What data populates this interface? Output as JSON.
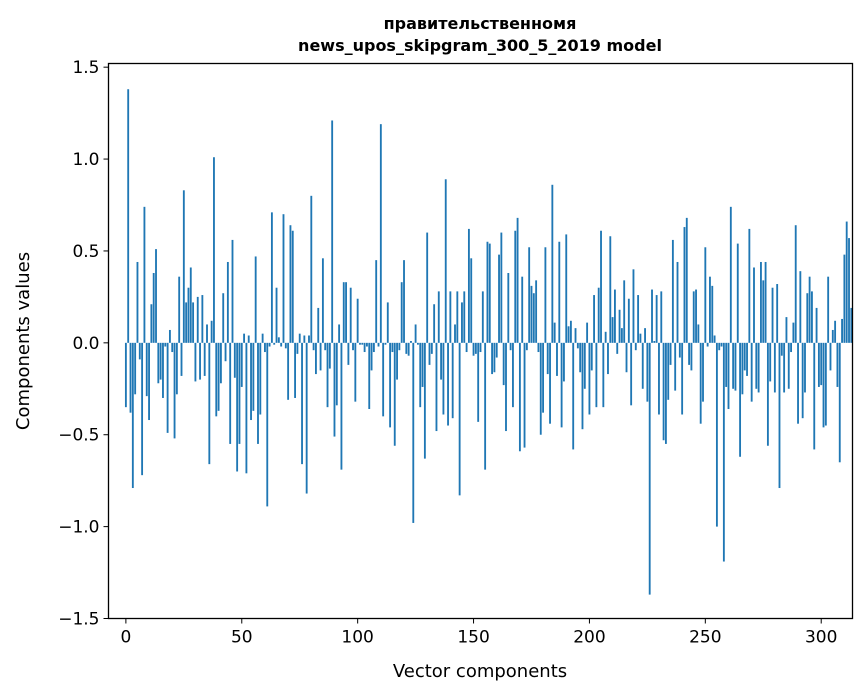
{
  "chart_data": {
    "type": "bar",
    "title_lines": [
      "правительственномя",
      "news_upos_skipgram_300_5_2019 model"
    ],
    "xlabel": "Vector components",
    "ylabel": "Components values",
    "xlim": [
      -7.5,
      313.5
    ],
    "ylim": [
      -1.5,
      1.52
    ],
    "xticks": [
      0,
      50,
      100,
      150,
      200,
      250,
      300
    ],
    "xtick_labels": [
      "0",
      "50",
      "100",
      "150",
      "200",
      "250",
      "300"
    ],
    "yticks": [
      -1.5,
      -1.0,
      -0.5,
      0.0,
      0.5,
      1.0,
      1.5
    ],
    "ytick_labels": [
      "−1.5",
      "−1.0",
      "−0.5",
      "0.0",
      "0.5",
      "1.0",
      "1.5"
    ],
    "grid": false,
    "bar_color": "#1f77b4",
    "bar_width": 0.8,
    "values": [
      -0.35,
      1.38,
      -0.38,
      -0.79,
      -0.28,
      0.44,
      -0.09,
      -0.72,
      0.74,
      -0.29,
      -0.42,
      0.21,
      0.38,
      0.51,
      -0.22,
      -0.2,
      -0.3,
      -0.02,
      -0.49,
      0.07,
      -0.05,
      -0.52,
      -0.28,
      0.36,
      -0.18,
      0.83,
      0.22,
      0.3,
      0.41,
      0.22,
      -0.21,
      0.25,
      -0.2,
      0.26,
      -0.18,
      0.1,
      -0.66,
      0.12,
      1.01,
      -0.4,
      -0.37,
      -0.22,
      0.27,
      -0.1,
      0.44,
      -0.55,
      0.56,
      -0.19,
      -0.7,
      -0.55,
      -0.24,
      0.05,
      -0.71,
      0.04,
      -0.42,
      -0.37,
      0.47,
      -0.55,
      -0.39,
      0.05,
      -0.05,
      -0.89,
      -0.02,
      0.71,
      -0.01,
      0.3,
      0.03,
      -0.02,
      0.7,
      -0.03,
      -0.31,
      0.64,
      0.61,
      -0.3,
      -0.06,
      0.05,
      -0.66,
      0.04,
      -0.82,
      0.04,
      0.8,
      -0.04,
      -0.17,
      0.19,
      -0.15,
      0.46,
      -0.04,
      -0.35,
      -0.14,
      1.21,
      -0.51,
      -0.34,
      0.1,
      -0.69,
      0.33,
      0.33,
      -0.12,
      0.3,
      -0.04,
      -0.32,
      0.24,
      -0.01,
      -0.01,
      -0.05,
      -0.02,
      -0.36,
      -0.15,
      -0.05,
      0.45,
      -0.02,
      1.19,
      -0.4,
      -0.01,
      0.22,
      -0.46,
      -0.05,
      -0.56,
      -0.2,
      -0.04,
      0.33,
      0.45,
      -0.06,
      -0.07,
      0.01,
      -0.98,
      0.1,
      -0.01,
      -0.35,
      -0.24,
      -0.63,
      0.6,
      -0.12,
      -0.06,
      0.21,
      -0.48,
      0.28,
      -0.2,
      -0.39,
      0.89,
      -0.45,
      0.28,
      -0.41,
      0.1,
      0.28,
      -0.83,
      0.22,
      0.28,
      -0.05,
      0.62,
      0.46,
      -0.07,
      -0.06,
      -0.43,
      -0.05,
      0.28,
      -0.69,
      0.55,
      0.54,
      -0.17,
      -0.16,
      -0.08,
      0.48,
      0.6,
      -0.23,
      -0.48,
      0.38,
      -0.04,
      -0.35,
      0.61,
      0.68,
      -0.59,
      0.36,
      -0.57,
      -0.04,
      0.52,
      0.31,
      0.27,
      0.34,
      -0.05,
      -0.5,
      -0.38,
      0.52,
      -0.17,
      -0.44,
      0.86,
      0.11,
      -0.18,
      0.55,
      -0.46,
      -0.21,
      0.59,
      0.09,
      0.12,
      -0.58,
      0.08,
      -0.03,
      -0.16,
      -0.47,
      -0.25,
      0.11,
      -0.39,
      -0.15,
      0.26,
      -0.35,
      0.3,
      0.61,
      -0.35,
      0.06,
      -0.17,
      0.58,
      0.14,
      0.29,
      -0.06,
      0.18,
      0.08,
      0.34,
      -0.16,
      0.24,
      -0.34,
      0.4,
      -0.04,
      0.26,
      0.05,
      -0.25,
      0.08,
      -0.32,
      -1.37,
      0.29,
      0.01,
      0.26,
      -0.39,
      0.28,
      -0.53,
      -0.55,
      -0.31,
      -0.12,
      0.56,
      -0.26,
      0.44,
      -0.08,
      -0.39,
      0.63,
      0.68,
      -0.12,
      -0.15,
      0.28,
      0.29,
      0.1,
      -0.44,
      -0.32,
      0.52,
      -0.02,
      0.36,
      0.31,
      0.04,
      -1.0,
      -0.04,
      -0.02,
      -1.19,
      -0.24,
      -0.36,
      0.74,
      -0.25,
      -0.26,
      0.54,
      -0.62,
      -0.28,
      -0.15,
      -0.18,
      0.62,
      -0.32,
      0.41,
      -0.25,
      -0.27,
      0.44,
      0.34,
      0.44,
      -0.56,
      -0.21,
      0.3,
      -0.27,
      0.32,
      -0.79,
      -0.07,
      -0.27,
      0.14,
      -0.25,
      -0.05,
      0.11,
      0.64,
      -0.44,
      0.39,
      -0.41,
      -0.27,
      0.27,
      0.36,
      0.28,
      -0.58,
      0.19,
      -0.24,
      -0.23,
      -0.46,
      -0.45,
      0.36,
      -0.15,
      0.07,
      0.12,
      -0.24,
      -0.65,
      0.13,
      0.48,
      0.66,
      0.57,
      0.19
    ]
  }
}
